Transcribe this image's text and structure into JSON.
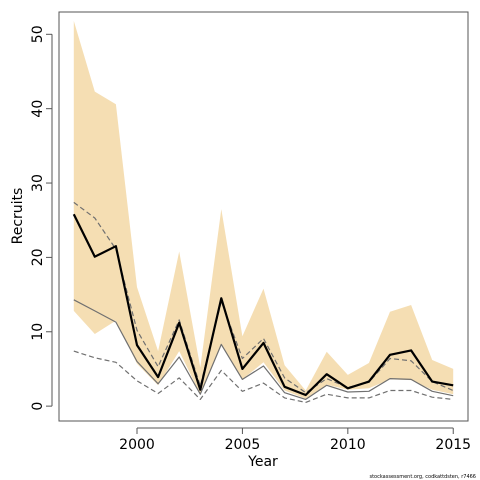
{
  "chart_data": {
    "type": "line",
    "xlabel": "Year",
    "ylabel": "Recruits",
    "xlim": [
      1996.3,
      2015.7
    ],
    "ylim": [
      -2,
      53
    ],
    "x_ticks": [
      2000,
      2005,
      2010,
      2015
    ],
    "y_ticks": [
      0,
      10,
      20,
      30,
      40,
      50
    ],
    "grid": false,
    "legend": "none",
    "x": [
      1997,
      1998,
      1999,
      2000,
      2001,
      2002,
      2003,
      2004,
      2005,
      2006,
      2007,
      2008,
      2009,
      2010,
      2011,
      2012,
      2013,
      2014,
      2015
    ],
    "band": {
      "color": "#f5deb3",
      "lower": [
        12.8,
        9.7,
        11.5,
        5.7,
        2.8,
        7.4,
        1.6,
        8.4,
        3.6,
        5.9,
        2.1,
        1.0,
        2.9,
        2.2,
        2.4,
        3.6,
        3.5,
        2.2,
        1.6
      ],
      "upper": [
        51.8,
        42.3,
        40.6,
        16.0,
        7.4,
        20.8,
        5.2,
        26.5,
        9.4,
        15.8,
        5.5,
        2.1,
        7.3,
        4.2,
        5.8,
        12.7,
        13.6,
        6.2,
        5.0
      ]
    },
    "series": [
      {
        "color": "#000000",
        "style": "solid",
        "width": 2.2,
        "values": [
          25.8,
          20.1,
          21.5,
          8.2,
          3.9,
          11.2,
          2.2,
          14.5,
          5.0,
          8.5,
          2.6,
          1.5,
          4.3,
          2.4,
          3.3,
          6.9,
          7.5,
          3.3,
          2.8
        ]
      },
      {
        "color": "#707070",
        "style": "dashed",
        "width": 1.2,
        "values": [
          27.4,
          25.3,
          21.1,
          10.2,
          5.3,
          11.6,
          2.7,
          14.1,
          6.4,
          9.1,
          3.8,
          1.8,
          3.7,
          2.5,
          3.2,
          6.4,
          6.1,
          3.3,
          2.1
        ]
      },
      {
        "color": "#707070",
        "style": "solid",
        "width": 1.2,
        "values": [
          14.3,
          12.8,
          11.3,
          6.0,
          3.0,
          6.6,
          1.6,
          8.3,
          3.6,
          5.4,
          1.8,
          0.9,
          2.8,
          1.9,
          2.0,
          3.7,
          3.6,
          2.0,
          1.4
        ]
      },
      {
        "color": "#707070",
        "style": "dashed",
        "width": 1.2,
        "values": [
          7.4,
          6.5,
          5.9,
          3.4,
          1.7,
          3.8,
          0.9,
          4.8,
          2.0,
          3.1,
          1.1,
          0.5,
          1.6,
          1.1,
          1.1,
          2.1,
          2.1,
          1.2,
          0.9
        ]
      }
    ]
  },
  "footer_text": "stockassessment.org, codkattdsten, r7466"
}
